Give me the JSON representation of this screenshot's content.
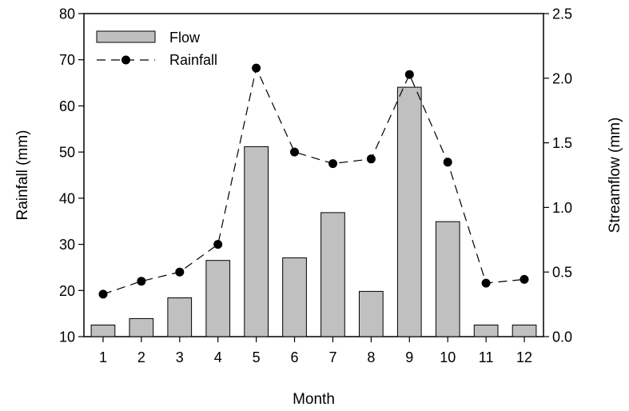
{
  "chart_data": {
    "type": "bar",
    "title": "",
    "xlabel": "Month",
    "ylabel": "Rainfall (mm)",
    "y2label": "Streamflow (mm)",
    "categories": [
      "1",
      "2",
      "3",
      "4",
      "5",
      "6",
      "7",
      "8",
      "9",
      "10",
      "11",
      "12"
    ],
    "ylim": [
      10,
      80
    ],
    "y2lim": [
      0.0,
      2.5
    ],
    "yticks": [
      "10",
      "20",
      "30",
      "40",
      "50",
      "60",
      "70",
      "80"
    ],
    "y2ticks": [
      "0.0",
      "0.5",
      "1.0",
      "1.5",
      "2.0",
      "2.5"
    ],
    "legend_position": "top-left",
    "grid": false,
    "series": [
      {
        "name": "Flow",
        "type": "bar",
        "axis": "right",
        "color": "#c0c0c0",
        "values": [
          0.09,
          0.14,
          0.3,
          0.59,
          1.47,
          0.61,
          0.96,
          0.35,
          1.93,
          0.89,
          0.09,
          0.09
        ]
      },
      {
        "name": "Rainfall",
        "type": "line",
        "axis": "left",
        "style": "dashed",
        "marker": "circle",
        "color": "#000000",
        "values": [
          19.2,
          22.0,
          24.0,
          30.0,
          68.2,
          50.0,
          47.5,
          48.5,
          66.8,
          47.8,
          21.6,
          22.4
        ]
      }
    ]
  }
}
